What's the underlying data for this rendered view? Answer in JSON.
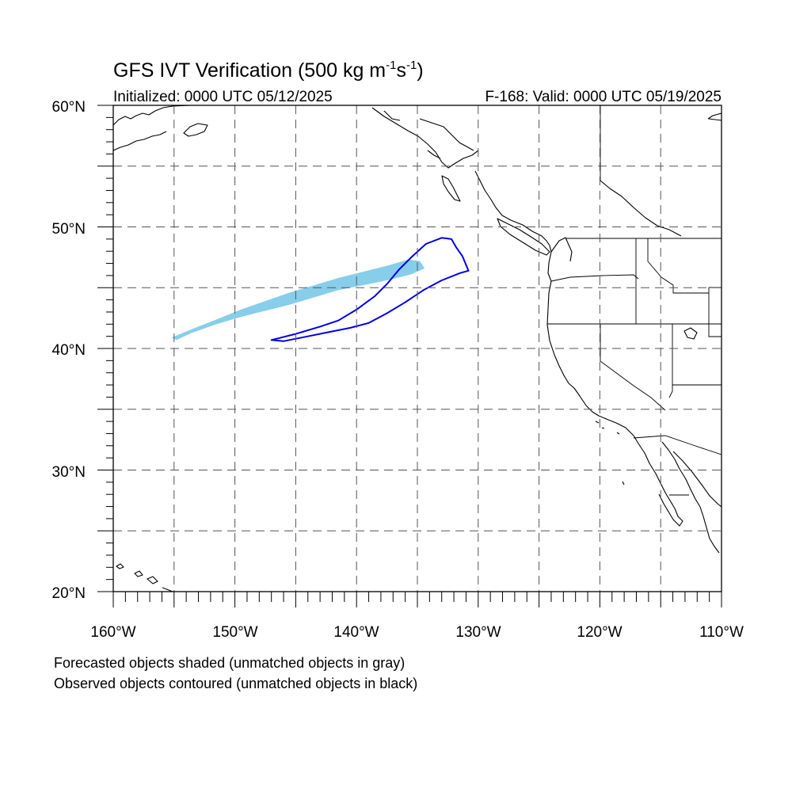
{
  "title": {
    "main": "GFS IVT Verification (500 kg m",
    "sup1": "-1",
    "mid": "s",
    "sup2": "-1",
    "end": ")"
  },
  "initialized": "Initialized: 0000 UTC 05/12/2025",
  "valid": "F-168: Valid: 0000 UTC 05/19/2025",
  "map": {
    "lon_range": [
      -160,
      -110
    ],
    "lat_range": [
      20,
      60
    ],
    "lon_labels": [
      "160°W",
      "150°W",
      "140°W",
      "130°W",
      "120°W",
      "110°W"
    ],
    "lat_labels": [
      "60°N",
      "50°N",
      "40°N",
      "30°N",
      "20°N"
    ],
    "forecast_color": "#87ceeb",
    "observed_color": "#0000e6"
  },
  "forecast_object": {
    "color": "#87ceeb",
    "polygon": [
      [
        -155.2,
        40.9
      ],
      [
        -153.5,
        41.6
      ],
      [
        -151.5,
        42.4
      ],
      [
        -149.5,
        43.2
      ],
      [
        -147.5,
        43.9
      ],
      [
        -145.5,
        44.6
      ],
      [
        -143.5,
        45.2
      ],
      [
        -141.5,
        45.8
      ],
      [
        -139.5,
        46.3
      ],
      [
        -137.5,
        46.8
      ],
      [
        -135.8,
        47.3
      ],
      [
        -134.8,
        47.2
      ],
      [
        -134.4,
        46.6
      ],
      [
        -135.5,
        46.1
      ],
      [
        -137.5,
        45.6
      ],
      [
        -139.5,
        45.2
      ],
      [
        -141.5,
        44.8
      ],
      [
        -143.5,
        44.2
      ],
      [
        -145.5,
        43.6
      ],
      [
        -147.5,
        43.1
      ],
      [
        -149.5,
        42.6
      ],
      [
        -151.5,
        42.0
      ],
      [
        -153.5,
        41.3
      ],
      [
        -154.8,
        40.7
      ]
    ]
  },
  "observed_object": {
    "color": "#0000e6",
    "polygon": [
      [
        -147.0,
        40.7
      ],
      [
        -145.0,
        41.2
      ],
      [
        -143.0,
        41.8
      ],
      [
        -141.5,
        42.3
      ],
      [
        -140.0,
        43.2
      ],
      [
        -138.5,
        44.3
      ],
      [
        -137.5,
        45.3
      ],
      [
        -136.5,
        46.5
      ],
      [
        -135.5,
        47.5
      ],
      [
        -134.3,
        48.6
      ],
      [
        -133.0,
        49.1
      ],
      [
        -132.2,
        49.0
      ],
      [
        -131.8,
        48.3
      ],
      [
        -131.3,
        47.6
      ],
      [
        -130.8,
        46.4
      ],
      [
        -131.5,
        46.2
      ],
      [
        -133.0,
        45.6
      ],
      [
        -134.5,
        44.8
      ],
      [
        -136.0,
        43.8
      ],
      [
        -137.5,
        42.9
      ],
      [
        -139.0,
        42.1
      ],
      [
        -140.5,
        41.7
      ],
      [
        -142.5,
        41.3
      ],
      [
        -144.5,
        40.9
      ],
      [
        -146.0,
        40.6
      ]
    ]
  },
  "notes": {
    "line1": "Forecasted objects shaded (unmatched objects in gray)",
    "line2": "Observed objects contoured (unmatched objects in black)"
  }
}
